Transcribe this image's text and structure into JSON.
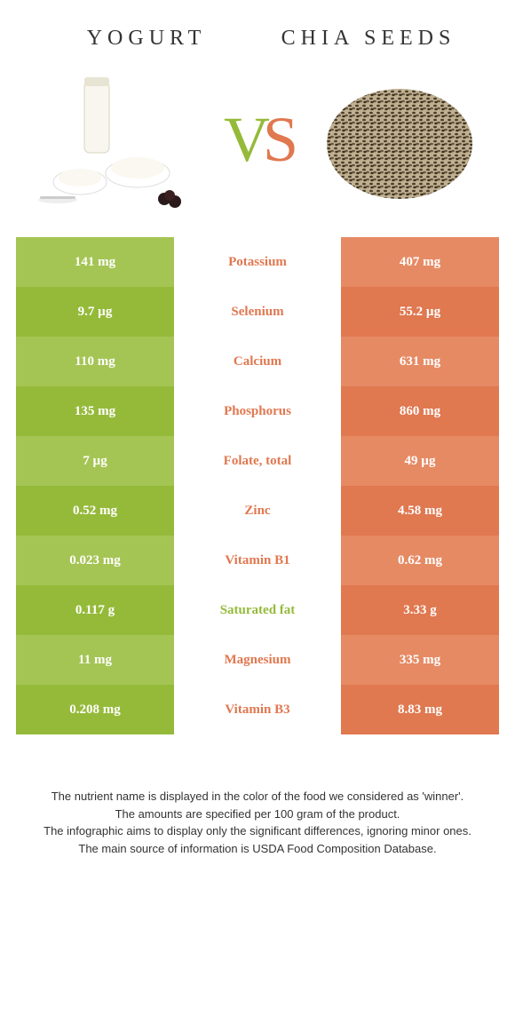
{
  "header": {
    "left": "YOGURT",
    "right": "CHIA SEEDS",
    "vs_v": "V",
    "vs_s": "S"
  },
  "colors": {
    "left_light": "#a4c554",
    "left_dark": "#95ba3a",
    "right_light": "#e68a64",
    "right_dark": "#e07850",
    "mid_green": "#95ba3a",
    "mid_orange": "#e07850"
  },
  "rows": [
    {
      "left": "141 mg",
      "mid": "Potassium",
      "right": "407 mg",
      "winner": "right"
    },
    {
      "left": "9.7 µg",
      "mid": "Selenium",
      "right": "55.2 µg",
      "winner": "right"
    },
    {
      "left": "110 mg",
      "mid": "Calcium",
      "right": "631 mg",
      "winner": "right"
    },
    {
      "left": "135 mg",
      "mid": "Phosphorus",
      "right": "860 mg",
      "winner": "right"
    },
    {
      "left": "7 µg",
      "mid": "Folate, total",
      "right": "49 µg",
      "winner": "right"
    },
    {
      "left": "0.52 mg",
      "mid": "Zinc",
      "right": "4.58 mg",
      "winner": "right"
    },
    {
      "left": "0.023 mg",
      "mid": "Vitamin B1",
      "right": "0.62 mg",
      "winner": "right"
    },
    {
      "left": "0.117 g",
      "mid": "Saturated fat",
      "right": "3.33 g",
      "winner": "left"
    },
    {
      "left": "11 mg",
      "mid": "Magnesium",
      "right": "335 mg",
      "winner": "right"
    },
    {
      "left": "0.208 mg",
      "mid": "Vitamin B3",
      "right": "8.83 mg",
      "winner": "right"
    }
  ],
  "footer": [
    "The nutrient name is displayed in the color of the food we considered as 'winner'.",
    "The amounts are specified per 100 gram of the product.",
    "The infographic aims to display only the significant differences, ignoring minor ones.",
    "The main source of information is USDA Food Composition Database."
  ]
}
